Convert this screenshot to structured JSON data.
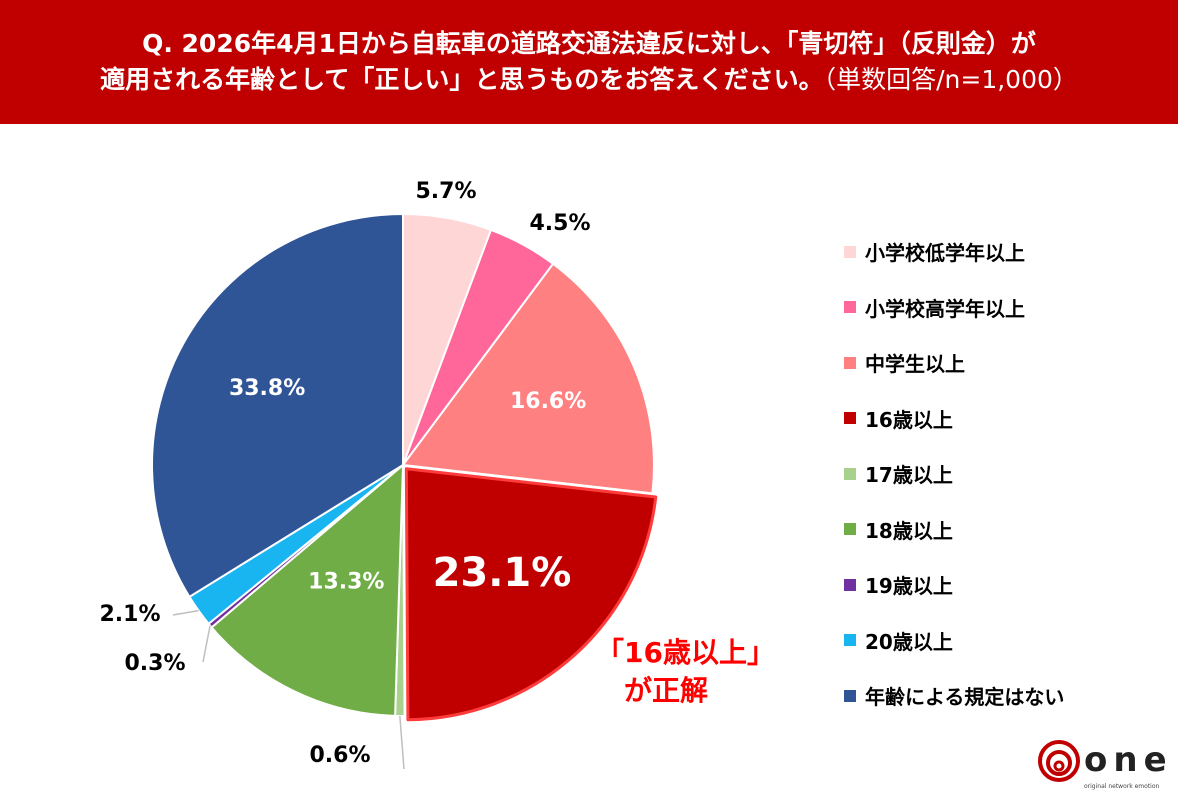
{
  "header": {
    "line1": "Q. 2026年4月1日から自転車の道路交通法違反に対し、「青切符」（反則金）が",
    "line2_main": "適用される年齢として「正しい」と思うものをお答えください。",
    "line2_sub": "（単数回答/n=1,000）"
  },
  "colors": {
    "header_bg": "#c00000",
    "answer": "#ff0000"
  },
  "chart_data": {
    "type": "pie",
    "categories": [
      "小学校低学年以上",
      "小学校高学年以上",
      "中学生以上",
      "16歳以上",
      "17歳以上",
      "18歳以上",
      "19歳以上",
      "20歳以上",
      "年齢による規定はない"
    ],
    "values": [
      5.7,
      4.5,
      16.6,
      23.1,
      0.6,
      13.3,
      0.3,
      2.1,
      33.8
    ],
    "labels": [
      "5.7%",
      "4.5%",
      "16.6%",
      "23.1%",
      "0.6%",
      "13.3%",
      "0.3%",
      "2.1%",
      "33.8%"
    ],
    "colors": [
      "#ffd6d6",
      "#ff6699",
      "#ff8080",
      "#c00000",
      "#a9d18e",
      "#70ad47",
      "#7030a0",
      "#19b5f0",
      "#2f5597"
    ],
    "highlight": "16歳以上",
    "start": "12 o'clock, clockwise",
    "legend_position": "right"
  },
  "answer": {
    "line1": "「16歳以上」",
    "line2": "が正解"
  },
  "logo": {
    "word": "one",
    "tagline": "original network emotion"
  }
}
